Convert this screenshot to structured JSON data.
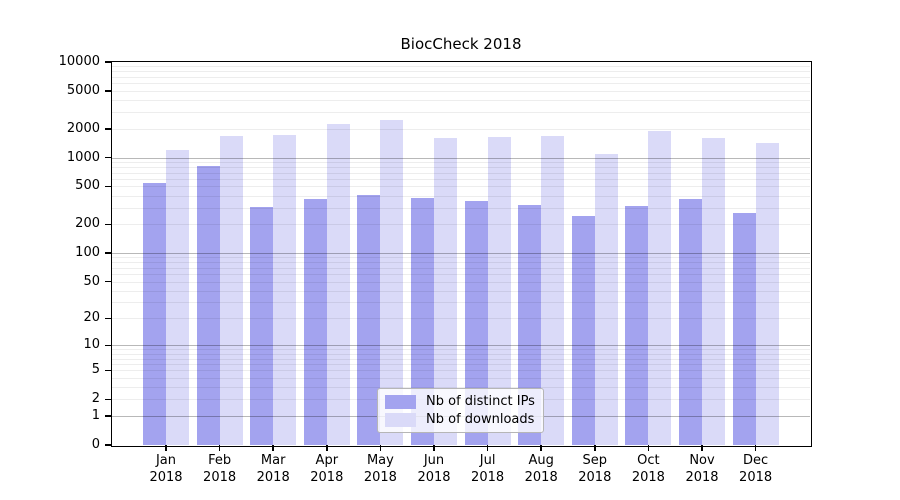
{
  "figure": {
    "title": "BiocCheck 2018"
  },
  "chart_data": {
    "type": "bar",
    "title": "BiocCheck 2018",
    "y_scale": "log1p",
    "ylim": [
      0,
      10000
    ],
    "y_ticks": [
      0,
      1,
      2,
      5,
      10,
      20,
      50,
      100,
      200,
      500,
      1000,
      2000,
      5000,
      10000
    ],
    "grid": {
      "orientation": "horizontal",
      "minor_color": "#ededed",
      "major_color": "#b8b8b8"
    },
    "categories": [
      "Jan",
      "Feb",
      "Mar",
      "Apr",
      "May",
      "Jun",
      "Jul",
      "Aug",
      "Sep",
      "Oct",
      "Nov",
      "Dec"
    ],
    "year_label": "2018",
    "series": [
      {
        "name": "Nb of distinct IPs",
        "color": "#a3a3ef",
        "values": [
          545,
          815,
          306,
          371,
          412,
          375,
          354,
          318,
          246,
          310,
          367,
          264
        ]
      },
      {
        "name": "Nb of downloads",
        "color": "#dadaf8",
        "values": [
          1200,
          1690,
          1730,
          2240,
          2480,
          1590,
          1645,
          1670,
          1085,
          1910,
          1600,
          1430
        ]
      }
    ],
    "legend": {
      "position": "lower center",
      "items": [
        "Nb of distinct IPs",
        "Nb of downloads"
      ]
    }
  }
}
